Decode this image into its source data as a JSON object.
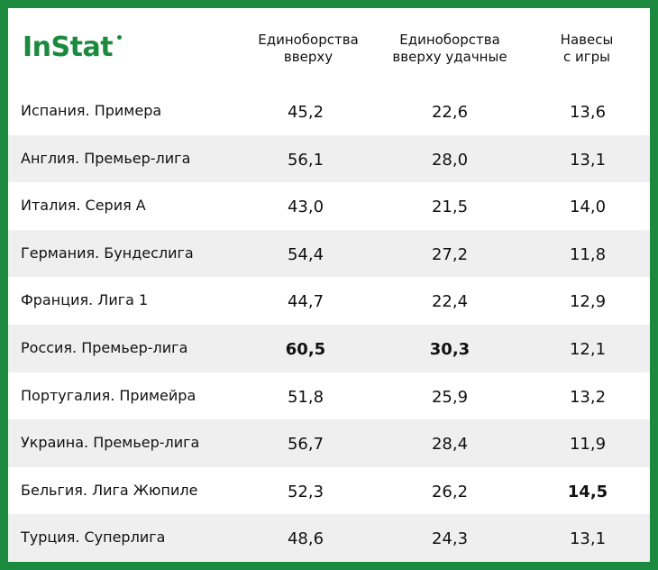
{
  "brand": {
    "logo_text": "InStat",
    "color": "#1c8a3e"
  },
  "chart_data": {
    "type": "table",
    "columns": [
      {
        "line1": "Единоборства",
        "line2": "вверху"
      },
      {
        "line1": "Единоборства",
        "line2": "вверху удачные"
      },
      {
        "line1": "Навесы",
        "line2": "с игры"
      }
    ],
    "rows": [
      {
        "league": "Испания. Примера",
        "values": [
          "45,2",
          "22,6",
          "13,6"
        ],
        "bold": [
          false,
          false,
          false
        ]
      },
      {
        "league": "Англия. Премьер-лига",
        "values": [
          "56,1",
          "28,0",
          "13,1"
        ],
        "bold": [
          false,
          false,
          false
        ]
      },
      {
        "league": "Италия. Серия А",
        "values": [
          "43,0",
          "21,5",
          "14,0"
        ],
        "bold": [
          false,
          false,
          false
        ]
      },
      {
        "league": "Германия. Бундеслига",
        "values": [
          "54,4",
          "27,2",
          "11,8"
        ],
        "bold": [
          false,
          false,
          false
        ]
      },
      {
        "league": "Франция. Лига 1",
        "values": [
          "44,7",
          "22,4",
          "12,9"
        ],
        "bold": [
          false,
          false,
          false
        ]
      },
      {
        "league": "Россия. Премьер-лига",
        "values": [
          "60,5",
          "30,3",
          "12,1"
        ],
        "bold": [
          true,
          true,
          false
        ]
      },
      {
        "league": "Португалия. Примейра",
        "values": [
          "51,8",
          "25,9",
          "13,2"
        ],
        "bold": [
          false,
          false,
          false
        ]
      },
      {
        "league": "Украина. Премьер-лига",
        "values": [
          "56,7",
          "28,4",
          "11,9"
        ],
        "bold": [
          false,
          false,
          false
        ]
      },
      {
        "league": "Бельгия. Лига Жюпиле",
        "values": [
          "52,3",
          "26,2",
          "14,5"
        ],
        "bold": [
          false,
          false,
          true
        ]
      },
      {
        "league": "Турция. Суперлига",
        "values": [
          "48,6",
          "24,3",
          "13,1"
        ],
        "bold": [
          false,
          false,
          false
        ]
      }
    ]
  }
}
